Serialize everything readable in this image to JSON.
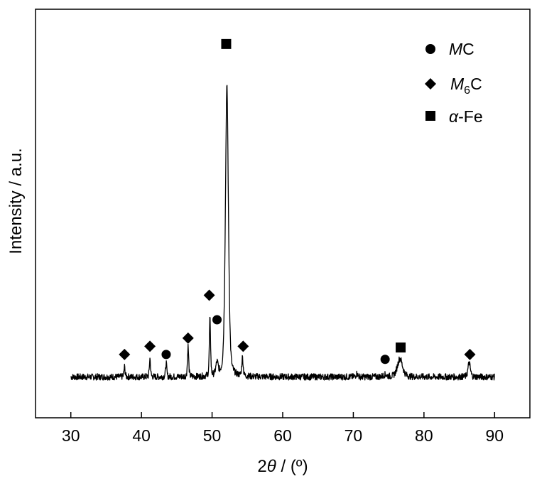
{
  "chart_data": {
    "type": "line",
    "xlabel_prefix": "2",
    "xlabel_symbol": "θ",
    "xlabel_suffix": " / (º)",
    "ylabel": "Intensity / a.u.",
    "xlim": [
      25,
      95
    ],
    "ylim": [
      0,
      1
    ],
    "x_ticks": [
      30,
      40,
      50,
      60,
      70,
      80,
      90
    ],
    "x_tick_labels": [
      "30",
      "40",
      "50",
      "60",
      "70",
      "80",
      "90"
    ],
    "y_ticks_shown": false,
    "grid": false,
    "legend_position": "top-right",
    "legend": [
      {
        "marker": "circle",
        "italic": "M",
        "rest": "C",
        "sub": ""
      },
      {
        "marker": "diamond",
        "italic": "M",
        "rest": "C",
        "sub": "6"
      },
      {
        "marker": "square",
        "italic": "α",
        "rest": "-Fe",
        "sub": ""
      }
    ],
    "x_range": [
      30,
      90
    ],
    "baseline": 0.1,
    "noise_amplitude": 0.008,
    "peaks": [
      {
        "x": 37.6,
        "height": 0.025,
        "width": 0.12
      },
      {
        "x": 41.2,
        "height": 0.045,
        "width": 0.12
      },
      {
        "x": 43.5,
        "height": 0.035,
        "width": 0.12
      },
      {
        "x": 46.6,
        "height": 0.075,
        "width": 0.13
      },
      {
        "x": 49.7,
        "height": 0.14,
        "width": 0.13
      },
      {
        "x": 50.7,
        "height": 0.03,
        "width": 0.25
      },
      {
        "x": 52.1,
        "height": 0.71,
        "width": 0.32
      },
      {
        "x": 54.3,
        "height": 0.045,
        "width": 0.15
      },
      {
        "x": 70.5,
        "height": 0.008,
        "width": 0.2
      },
      {
        "x": 74.5,
        "height": 0.005,
        "width": 0.4
      },
      {
        "x": 76.6,
        "height": 0.045,
        "width": 0.55
      },
      {
        "x": 86.4,
        "height": 0.035,
        "width": 0.25
      }
    ],
    "peak_markers": [
      {
        "x": 37.6,
        "y": 0.155,
        "marker": "diamond",
        "phase": "M6C"
      },
      {
        "x": 41.2,
        "y": 0.175,
        "marker": "diamond",
        "phase": "M6C"
      },
      {
        "x": 43.5,
        "y": 0.155,
        "marker": "circle",
        "phase": "MC"
      },
      {
        "x": 46.6,
        "y": 0.195,
        "marker": "diamond",
        "phase": "M6C"
      },
      {
        "x": 49.6,
        "y": 0.3,
        "marker": "diamond",
        "phase": "M6C"
      },
      {
        "x": 50.7,
        "y": 0.24,
        "marker": "circle",
        "phase": "MC"
      },
      {
        "x": 52.0,
        "y": 0.915,
        "marker": "square",
        "phase": "α-Fe"
      },
      {
        "x": 54.4,
        "y": 0.175,
        "marker": "diamond",
        "phase": "M6C"
      },
      {
        "x": 74.5,
        "y": 0.143,
        "marker": "circle",
        "phase": "MC"
      },
      {
        "x": 76.7,
        "y": 0.172,
        "marker": "square",
        "phase": "α-Fe"
      },
      {
        "x": 86.5,
        "y": 0.155,
        "marker": "diamond",
        "phase": "M6C"
      }
    ]
  }
}
